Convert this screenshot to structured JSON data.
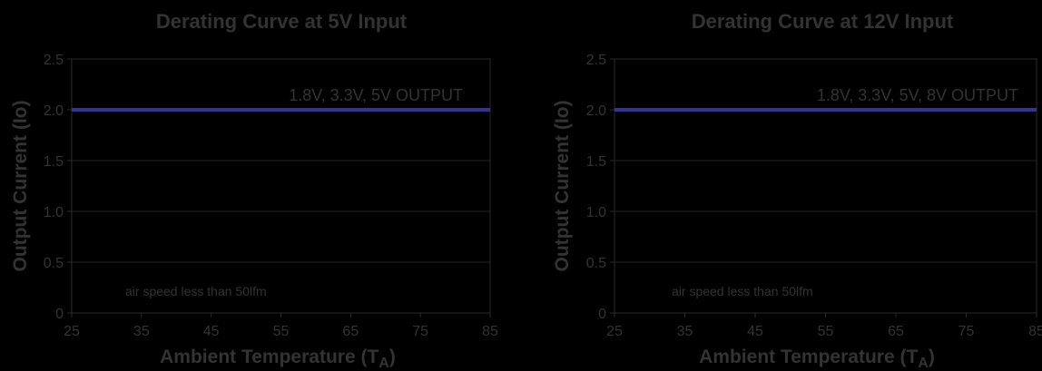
{
  "chart_data": [
    {
      "type": "line",
      "title": "Derating Curve at 5V Input",
      "xlabel": "Ambient Temperature (T",
      "xlabel_sub": "A",
      "xlabel_suffix": ")",
      "ylabel": "Output Current (Io)",
      "xlim": [
        25,
        85
      ],
      "ylim": [
        0,
        2.5
      ],
      "x_ticks": [
        "25",
        "35",
        "45",
        "55",
        "65",
        "75",
        "85"
      ],
      "y_ticks": [
        "0",
        "0.5",
        "1.0",
        "1.5",
        "2.0",
        "2.5"
      ],
      "grid": true,
      "series": [
        {
          "name": "1.8V, 3.3V, 5V OUTPUT",
          "x": [
            25,
            85
          ],
          "y": [
            2.0,
            2.0
          ],
          "color": "#333399"
        }
      ],
      "annotations": [
        "air speed less than 50lfm"
      ]
    },
    {
      "type": "line",
      "title": "Derating Curve at 12V Input",
      "xlabel": "Ambient Temperature (T",
      "xlabel_sub": "A",
      "xlabel_suffix": ")",
      "ylabel": "Output Current (Io)",
      "xlim": [
        25,
        85
      ],
      "ylim": [
        0,
        2.5
      ],
      "x_ticks": [
        "25",
        "35",
        "45",
        "55",
        "65",
        "75",
        "85"
      ],
      "y_ticks": [
        "0",
        "0.5",
        "1.0",
        "1.5",
        "2.0",
        "2.5"
      ],
      "grid": true,
      "series": [
        {
          "name": "1.8V, 3.3V, 5V, 8V OUTPUT",
          "x": [
            25,
            85
          ],
          "y": [
            2.0,
            2.0
          ],
          "color": "#333399"
        }
      ],
      "annotations": [
        "air speed less than 50lfm"
      ]
    }
  ]
}
